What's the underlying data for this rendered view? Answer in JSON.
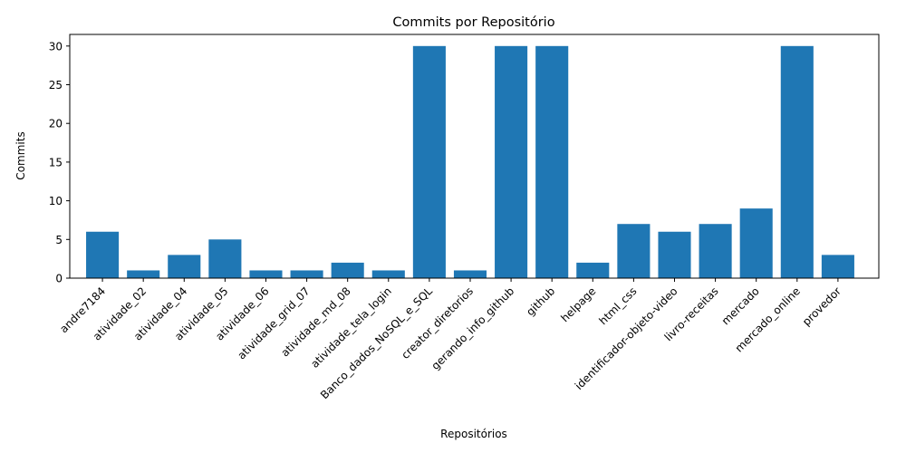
{
  "chart_data": {
    "type": "bar",
    "title": "Commits por Repositório",
    "xlabel": "Repositórios",
    "ylabel": "Commits",
    "categories": [
      "andre7184",
      "atividade_02",
      "atividade_04",
      "atividade_05",
      "atividade_06",
      "atividade_grid_07",
      "atividade_md_08",
      "atividade_tela_login",
      "Banco_dados_NoSQL_e_SQL",
      "creator_diretorios",
      "gerando_info_github",
      "github",
      "helpage",
      "html_css",
      "identificador-objeto-video",
      "livro-receitas",
      "mercado",
      "mercado_online",
      "provedor"
    ],
    "values": [
      6,
      1,
      3,
      5,
      1,
      1,
      2,
      1,
      30,
      1,
      30,
      30,
      2,
      7,
      6,
      7,
      9,
      30,
      3
    ],
    "ylim": [
      0,
      31.5
    ],
    "yticks": [
      0,
      5,
      10,
      15,
      20,
      25,
      30
    ],
    "bar_color": "#1f77b4",
    "grid": false,
    "legend": "none"
  }
}
